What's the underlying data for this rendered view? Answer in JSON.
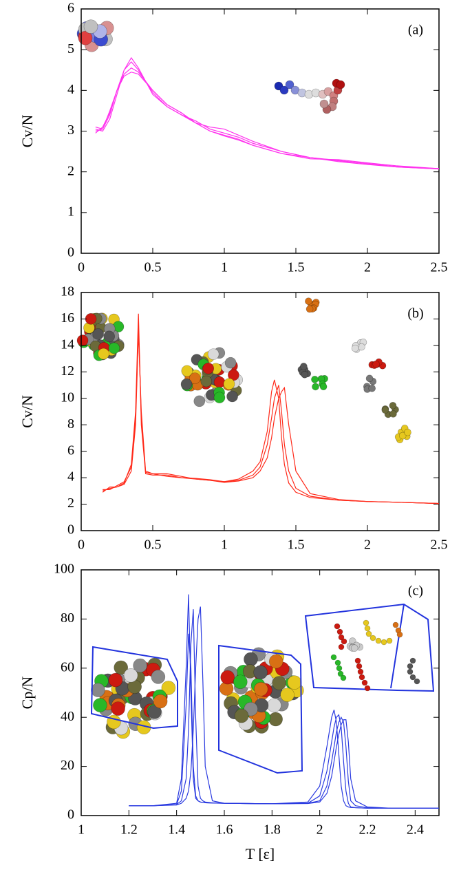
{
  "chart_data": [
    {
      "type": "line",
      "annotation": "(a)",
      "ylabel": "Cv/N",
      "x": [
        0.1,
        0.15,
        0.2,
        0.25,
        0.3,
        0.35,
        0.4,
        0.5,
        0.6,
        0.7,
        0.8,
        0.9,
        1.0,
        1.1,
        1.2,
        1.4,
        1.6,
        1.8,
        2.0,
        2.2,
        2.5
      ],
      "series": [
        {
          "color": "#ff33ee",
          "values": [
            3.05,
            3.0,
            3.3,
            3.9,
            4.5,
            4.8,
            4.55,
            3.9,
            3.6,
            3.4,
            3.2,
            3.1,
            3.05,
            2.9,
            2.75,
            2.5,
            2.35,
            2.25,
            2.18,
            2.12,
            2.07
          ]
        },
        {
          "color": "#ff33ee",
          "values": [
            3.0,
            3.05,
            3.4,
            4.0,
            4.5,
            4.7,
            4.5,
            3.95,
            3.6,
            3.4,
            3.25,
            3.05,
            2.95,
            2.85,
            2.7,
            2.5,
            2.35,
            2.27,
            2.2,
            2.13,
            2.08
          ]
        },
        {
          "color": "#ff33ee",
          "values": [
            2.95,
            3.1,
            3.45,
            4.0,
            4.4,
            4.55,
            4.45,
            4.0,
            3.65,
            3.45,
            3.2,
            3.0,
            2.9,
            2.8,
            2.65,
            2.45,
            2.32,
            2.3,
            2.22,
            2.15,
            2.08
          ]
        },
        {
          "color": "#ff33ee",
          "values": [
            3.1,
            3.05,
            3.5,
            4.0,
            4.35,
            4.45,
            4.4,
            4.0,
            3.65,
            3.45,
            3.2,
            3.0,
            2.88,
            2.78,
            2.65,
            2.45,
            2.35,
            2.28,
            2.2,
            2.12,
            2.07
          ]
        }
      ],
      "xlim": [
        0,
        2.5
      ],
      "xticks": [
        0,
        0.5,
        1,
        1.5,
        2,
        2.5
      ],
      "ylim": [
        0,
        6
      ],
      "yticks": [
        0,
        1,
        2,
        3,
        4,
        5,
        6
      ]
    },
    {
      "type": "line",
      "annotation": "(b)",
      "ylabel": "Cv/N",
      "x": [
        0.15,
        0.2,
        0.25,
        0.3,
        0.35,
        0.38,
        0.4,
        0.42,
        0.45,
        0.5,
        0.6,
        0.7,
        0.8,
        0.9,
        1.0,
        1.1,
        1.2,
        1.25,
        1.3,
        1.33,
        1.35,
        1.38,
        1.4,
        1.42,
        1.45,
        1.5,
        1.6,
        1.8,
        2.0,
        2.2,
        2.5
      ],
      "series": [
        {
          "color": "#ff2a1a",
          "values": [
            3.0,
            3.2,
            3.3,
            3.6,
            5,
            9,
            16.4,
            8,
            4.3,
            4.2,
            4.2,
            4.0,
            3.9,
            3.8,
            3.7,
            3.9,
            4.5,
            5.2,
            7.5,
            10.5,
            11.4,
            10,
            7,
            5,
            3.6,
            2.9,
            2.5,
            2.3,
            2.2,
            2.15,
            2.05
          ]
        },
        {
          "color": "#ff2a1a",
          "values": [
            3.1,
            3.1,
            3.4,
            3.7,
            4.8,
            8.5,
            15.5,
            8.5,
            4.4,
            4.3,
            4.1,
            4.0,
            3.95,
            3.85,
            3.7,
            3.8,
            4.2,
            4.8,
            6.5,
            8.5,
            10,
            11,
            9,
            6.5,
            4.5,
            3.2,
            2.6,
            2.3,
            2.2,
            2.15,
            2.05
          ]
        },
        {
          "color": "#ff2a1a",
          "values": [
            2.9,
            3.3,
            3.3,
            3.5,
            4.5,
            8,
            15,
            9,
            4.5,
            4.3,
            4.3,
            4.1,
            3.9,
            3.8,
            3.65,
            3.75,
            4.0,
            4.5,
            5.5,
            7,
            8.5,
            10,
            10.5,
            10.8,
            8,
            4.5,
            2.8,
            2.35,
            2.2,
            2.15,
            2.05
          ]
        }
      ],
      "xlim": [
        0,
        2.5
      ],
      "xticks": [
        0,
        0.5,
        1,
        1.5,
        2,
        2.5
      ],
      "ylim": [
        0,
        18
      ],
      "yticks": [
        0,
        2,
        4,
        6,
        8,
        10,
        12,
        14,
        16,
        18
      ]
    },
    {
      "type": "line",
      "annotation": "(c)",
      "ylabel": "Cp/N",
      "xlabel": "T [ε]",
      "x": [
        1.2,
        1.3,
        1.4,
        1.42,
        1.44,
        1.45,
        1.46,
        1.47,
        1.48,
        1.49,
        1.5,
        1.51,
        1.52,
        1.55,
        1.6,
        1.8,
        1.95,
        2.0,
        2.03,
        2.05,
        2.06,
        2.07,
        2.08,
        2.09,
        2.1,
        2.11,
        2.12,
        2.13,
        2.15,
        2.2,
        2.3,
        2.5
      ],
      "series": [
        {
          "color": "#2a3ae0",
          "values": [
            4,
            4,
            5,
            15,
            60,
            90,
            50,
            15,
            7,
            6,
            5.5,
            5.3,
            5.2,
            5.1,
            5,
            4.8,
            5.5,
            12,
            28,
            40,
            43,
            38,
            25,
            12,
            6,
            4,
            3.5,
            3.3,
            3.2,
            3,
            3,
            3
          ]
        },
        {
          "color": "#2a3ae0",
          "values": [
            4,
            4,
            4.5,
            10,
            45,
            74,
            60,
            20,
            8,
            6,
            5.5,
            5.3,
            5.2,
            5.1,
            5,
            4.8,
            5,
            8,
            18,
            30,
            36,
            40,
            41,
            36,
            22,
            10,
            5,
            3.5,
            3.2,
            3,
            3,
            3
          ]
        },
        {
          "color": "#2a3ae0",
          "values": [
            4,
            4,
            4.5,
            6,
            15,
            35,
            70,
            84,
            40,
            12,
            7,
            6,
            5.5,
            5.2,
            5,
            4.8,
            5,
            6,
            12,
            22,
            28,
            34,
            38,
            40,
            38,
            28,
            14,
            6,
            4,
            3.2,
            3,
            3
          ]
        },
        {
          "color": "#2a3ae0",
          "values": [
            4,
            4,
            4.3,
            5,
            7,
            10,
            18,
            35,
            60,
            80,
            85,
            55,
            20,
            6,
            5,
            4.8,
            4.9,
            5.5,
            9,
            16,
            22,
            28,
            33,
            37,
            39,
            39,
            30,
            15,
            6,
            3.5,
            3,
            3
          ]
        }
      ],
      "xlim": [
        1,
        2.5
      ],
      "xticks": [
        1,
        1.2,
        1.4,
        1.6,
        1.8,
        2,
        2.2,
        2.4
      ],
      "ylim": [
        0,
        100
      ],
      "yticks": [
        0,
        20,
        40,
        60,
        80,
        100
      ]
    }
  ]
}
